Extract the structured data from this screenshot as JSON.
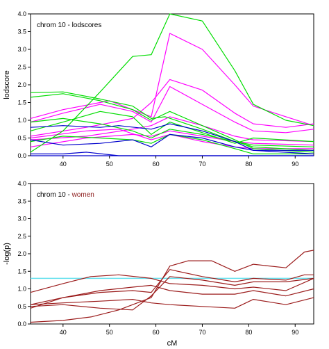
{
  "chart_data": [
    {
      "type": "line",
      "title": "chrom 10 - lodscores",
      "xlabel": "",
      "ylabel": "lodscore",
      "xlim": [
        33,
        94
      ],
      "ylim": [
        0.0,
        4.0
      ],
      "x_ticks": [
        40,
        50,
        60,
        70,
        80,
        90
      ],
      "y_ticks": [
        0.0,
        0.5,
        1.0,
        1.5,
        2.0,
        2.5,
        3.0,
        3.5,
        4.0
      ],
      "grid": false,
      "series": [
        {
          "color": "#ff00ff",
          "points": [
            [
              33,
              1.05
            ],
            [
              40,
              1.3
            ],
            [
              50,
              1.55
            ],
            [
              59,
              1.1
            ],
            [
              63,
              3.45
            ],
            [
              70,
              3.0
            ],
            [
              77,
              2.0
            ],
            [
              81,
              1.4
            ],
            [
              88,
              1.1
            ],
            [
              94,
              0.85
            ]
          ]
        },
        {
          "color": "#ff00ff",
          "points": [
            [
              33,
              0.55
            ],
            [
              45,
              0.8
            ],
            [
              55,
              1.05
            ],
            [
              59,
              1.5
            ],
            [
              63,
              2.15
            ],
            [
              70,
              1.85
            ],
            [
              77,
              1.2
            ],
            [
              81,
              0.9
            ],
            [
              88,
              0.8
            ],
            [
              94,
              0.9
            ]
          ]
        },
        {
          "color": "#ff00ff",
          "points": [
            [
              33,
              0.95
            ],
            [
              40,
              1.2
            ],
            [
              48,
              1.45
            ],
            [
              55,
              1.25
            ],
            [
              59,
              0.95
            ],
            [
              63,
              1.95
            ],
            [
              70,
              1.45
            ],
            [
              77,
              0.95
            ],
            [
              81,
              0.7
            ],
            [
              88,
              0.65
            ],
            [
              94,
              0.75
            ]
          ]
        },
        {
          "color": "#ff00ff",
          "points": [
            [
              33,
              0.45
            ],
            [
              45,
              0.55
            ],
            [
              55,
              0.75
            ],
            [
              59,
              0.85
            ],
            [
              63,
              1.1
            ],
            [
              70,
              0.85
            ],
            [
              77,
              0.55
            ],
            [
              81,
              0.45
            ],
            [
              94,
              0.4
            ]
          ]
        },
        {
          "color": "#ff00ff",
          "points": [
            [
              33,
              0.25
            ],
            [
              45,
              0.5
            ],
            [
              55,
              0.6
            ],
            [
              59,
              0.55
            ],
            [
              63,
              0.7
            ],
            [
              70,
              0.55
            ],
            [
              77,
              0.4
            ],
            [
              81,
              0.35
            ],
            [
              94,
              0.3
            ]
          ]
        },
        {
          "color": "#ff00ff",
          "points": [
            [
              33,
              0.5
            ],
            [
              45,
              0.7
            ],
            [
              52,
              0.75
            ],
            [
              59,
              0.45
            ],
            [
              63,
              0.6
            ],
            [
              70,
              0.4
            ],
            [
              77,
              0.25
            ],
            [
              81,
              0.2
            ],
            [
              94,
              0.2
            ]
          ]
        },
        {
          "color": "#00dd00",
          "points": [
            [
              33,
              0.1
            ],
            [
              40,
              0.7
            ],
            [
              48,
              1.8
            ],
            [
              55,
              2.8
            ],
            [
              59,
              2.85
            ],
            [
              63,
              4.2
            ],
            [
              70,
              3.8
            ],
            [
              77,
              2.4
            ],
            [
              81,
              1.45
            ],
            [
              88,
              1.0
            ],
            [
              94,
              0.85
            ]
          ]
        },
        {
          "color": "#00dd00",
          "points": [
            [
              33,
              1.65
            ],
            [
              40,
              1.75
            ],
            [
              48,
              1.55
            ],
            [
              55,
              1.3
            ],
            [
              59,
              1.0
            ],
            [
              63,
              1.25
            ],
            [
              70,
              0.85
            ],
            [
              77,
              0.45
            ],
            [
              81,
              0.2
            ],
            [
              94,
              0.1
            ]
          ]
        },
        {
          "color": "#00dd00",
          "points": [
            [
              33,
              1.78
            ],
            [
              40,
              1.8
            ],
            [
              48,
              1.6
            ],
            [
              55,
              1.4
            ],
            [
              59,
              1.05
            ],
            [
              62,
              1.1
            ],
            [
              70,
              0.75
            ],
            [
              77,
              0.4
            ],
            [
              81,
              0.25
            ],
            [
              94,
              0.15
            ]
          ]
        },
        {
          "color": "#00dd00",
          "points": [
            [
              33,
              0.7
            ],
            [
              40,
              0.95
            ],
            [
              48,
              1.25
            ],
            [
              55,
              1.1
            ],
            [
              59,
              0.6
            ],
            [
              63,
              0.95
            ],
            [
              70,
              0.65
            ],
            [
              77,
              0.35
            ],
            [
              81,
              0.5
            ],
            [
              94,
              0.4
            ]
          ]
        },
        {
          "color": "#00dd00",
          "points": [
            [
              33,
              0.4
            ],
            [
              40,
              0.55
            ],
            [
              48,
              0.5
            ],
            [
              55,
              0.45
            ],
            [
              59,
              0.35
            ],
            [
              63,
              0.6
            ],
            [
              70,
              0.45
            ],
            [
              77,
              0.2
            ],
            [
              81,
              0.05
            ],
            [
              94,
              0.05
            ]
          ]
        },
        {
          "color": "#00dd00",
          "points": [
            [
              33,
              0.95
            ],
            [
              40,
              1.05
            ],
            [
              48,
              0.9
            ],
            [
              55,
              0.7
            ],
            [
              59,
              0.5
            ],
            [
              63,
              0.75
            ],
            [
              70,
              0.6
            ],
            [
              77,
              0.4
            ],
            [
              81,
              0.3
            ],
            [
              94,
              0.25
            ]
          ]
        },
        {
          "color": "#0000cc",
          "points": [
            [
              33,
              0.8
            ],
            [
              40,
              0.85
            ],
            [
              48,
              0.8
            ],
            [
              52,
              0.85
            ],
            [
              59,
              0.75
            ],
            [
              63,
              0.9
            ],
            [
              70,
              0.7
            ],
            [
              77,
              0.4
            ],
            [
              81,
              0.15
            ],
            [
              94,
              0.05
            ]
          ]
        },
        {
          "color": "#0000cc",
          "points": [
            [
              33,
              0.45
            ],
            [
              40,
              0.3
            ],
            [
              48,
              0.35
            ],
            [
              55,
              0.45
            ],
            [
              59,
              0.25
            ],
            [
              63,
              0.6
            ],
            [
              70,
              0.5
            ],
            [
              77,
              0.25
            ],
            [
              81,
              0.15
            ],
            [
              94,
              0.15
            ]
          ]
        },
        {
          "color": "#0000cc",
          "points": [
            [
              33,
              0.05
            ],
            [
              40,
              0.05
            ],
            [
              45,
              0.1
            ],
            [
              50,
              0.03
            ],
            [
              52,
              0.0
            ],
            [
              94,
              0.0
            ]
          ]
        },
        {
          "color": "#0000cc",
          "points": [
            [
              33,
              0.0
            ],
            [
              94,
              0.0
            ]
          ]
        }
      ]
    },
    {
      "type": "line",
      "title": "chrom 10 - ",
      "title_highlight": "women",
      "title_highlight_color": "#8b1a1a",
      "xlabel": "cM",
      "ylabel": "-log(p)",
      "xlim": [
        33,
        94
      ],
      "ylim": [
        0.0,
        4.0
      ],
      "x_ticks": [
        40,
        50,
        60,
        70,
        80,
        90
      ],
      "y_ticks": [
        0.0,
        0.5,
        1.0,
        1.5,
        2.0,
        2.5,
        3.0,
        3.5,
        4.0
      ],
      "grid": false,
      "reference_line": {
        "y": 1.3,
        "color": "#66e0ee"
      },
      "series": [
        {
          "color": "#9b1c1c",
          "points": [
            [
              33,
              0.05
            ],
            [
              40,
              0.1
            ],
            [
              46,
              0.2
            ],
            [
              52,
              0.4
            ],
            [
              59,
              0.75
            ],
            [
              63,
              1.65
            ],
            [
              67,
              1.8
            ],
            [
              72,
              1.8
            ],
            [
              77,
              1.5
            ],
            [
              81,
              1.7
            ],
            [
              88,
              1.6
            ],
            [
              92,
              2.05
            ],
            [
              94,
              2.1
            ]
          ]
        },
        {
          "color": "#9b1c1c",
          "points": [
            [
              33,
              0.45
            ],
            [
              40,
              0.75
            ],
            [
              48,
              0.9
            ],
            [
              55,
              0.95
            ],
            [
              59,
              0.9
            ],
            [
              63,
              1.55
            ],
            [
              70,
              1.35
            ],
            [
              77,
              1.2
            ],
            [
              81,
              1.3
            ],
            [
              88,
              1.25
            ],
            [
              92,
              1.4
            ],
            [
              94,
              1.4
            ]
          ]
        },
        {
          "color": "#9b1c1c",
          "points": [
            [
              33,
              0.5
            ],
            [
              40,
              0.55
            ],
            [
              48,
              0.45
            ],
            [
              55,
              0.4
            ],
            [
              59,
              0.8
            ],
            [
              63,
              1.35
            ],
            [
              70,
              1.25
            ],
            [
              77,
              1.1
            ],
            [
              81,
              1.2
            ],
            [
              88,
              1.2
            ],
            [
              94,
              1.3
            ]
          ]
        },
        {
          "color": "#9b1c1c",
          "points": [
            [
              33,
              0.9
            ],
            [
              40,
              1.15
            ],
            [
              46,
              1.35
            ],
            [
              52,
              1.4
            ],
            [
              59,
              1.3
            ],
            [
              63,
              1.15
            ],
            [
              70,
              1.1
            ],
            [
              77,
              1.0
            ],
            [
              81,
              1.05
            ],
            [
              88,
              0.95
            ],
            [
              94,
              1.3
            ]
          ]
        },
        {
          "color": "#9b1c1c",
          "points": [
            [
              33,
              0.55
            ],
            [
              40,
              0.75
            ],
            [
              48,
              0.95
            ],
            [
              55,
              1.05
            ],
            [
              59,
              1.1
            ],
            [
              63,
              0.95
            ],
            [
              70,
              0.85
            ],
            [
              77,
              0.85
            ],
            [
              81,
              0.95
            ],
            [
              88,
              0.8
            ],
            [
              94,
              1.0
            ]
          ]
        },
        {
          "color": "#9b1c1c",
          "points": [
            [
              33,
              0.55
            ],
            [
              40,
              0.6
            ],
            [
              48,
              0.65
            ],
            [
              55,
              0.7
            ],
            [
              59,
              0.6
            ],
            [
              63,
              0.55
            ],
            [
              70,
              0.5
            ],
            [
              77,
              0.45
            ],
            [
              81,
              0.7
            ],
            [
              88,
              0.55
            ],
            [
              94,
              0.75
            ]
          ]
        }
      ]
    }
  ]
}
